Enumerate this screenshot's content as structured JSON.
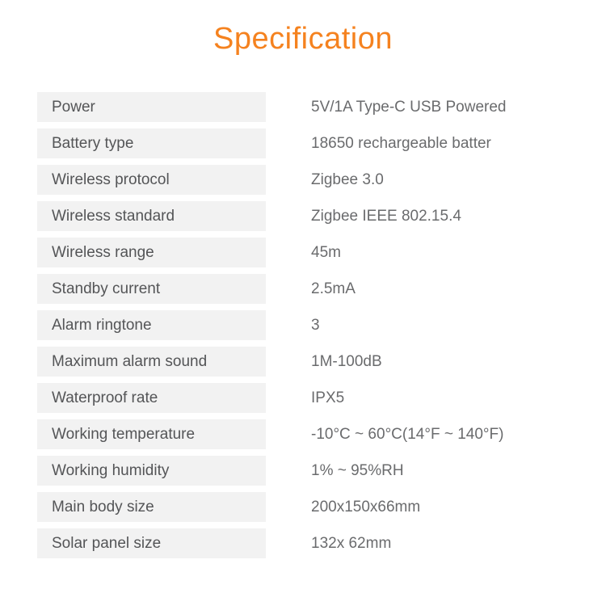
{
  "page": {
    "title": "Specification"
  },
  "colors": {
    "accent": "#f5821f",
    "row_bg": "#f2f2f2",
    "label_text": "#545557",
    "value_text": "#6a6b6d"
  },
  "spec_table": {
    "rows": [
      {
        "label": "Power",
        "value": "5V/1A Type-C USB Powered"
      },
      {
        "label": "Battery type",
        "value": "18650 rechargeable batter"
      },
      {
        "label": "Wireless protocol",
        "value": "Zigbee 3.0"
      },
      {
        "label": "Wireless standard",
        "value": "Zigbee IEEE 802.15.4"
      },
      {
        "label": "Wireless range",
        "value": "45m"
      },
      {
        "label": "Standby current",
        "value": "2.5mA"
      },
      {
        "label": "Alarm ringtone",
        "value": "3"
      },
      {
        "label": "Maximum alarm sound",
        "value": "1M-100dB"
      },
      {
        "label": "Waterproof rate",
        "value": "IPX5"
      },
      {
        "label": "Working temperature",
        "value": "-10°C ~ 60°C(14°F ~ 140°F)"
      },
      {
        "label": "Working humidity",
        "value": "1% ~ 95%RH"
      },
      {
        "label": "Main body size",
        "value": "200x150x66mm"
      },
      {
        "label": "Solar panel size",
        "value": "132x 62mm"
      }
    ]
  }
}
